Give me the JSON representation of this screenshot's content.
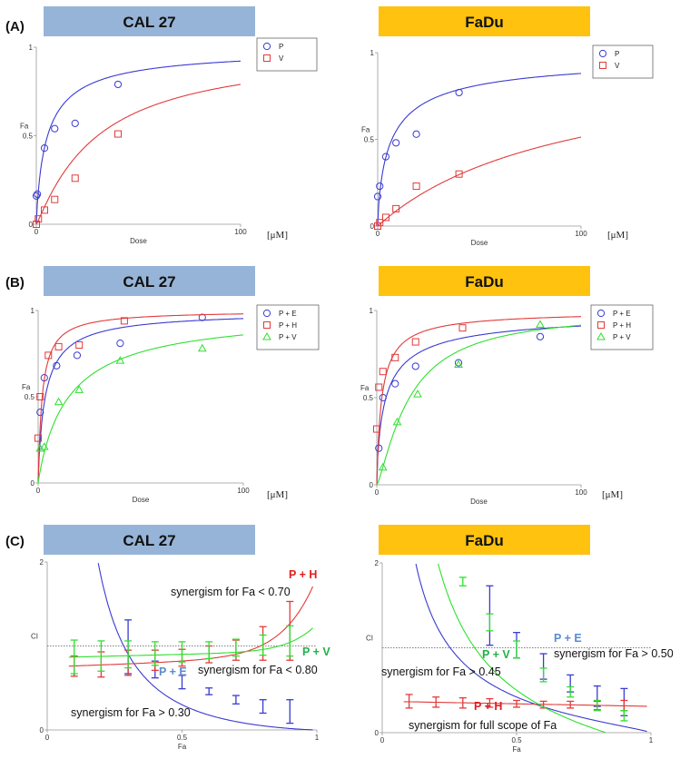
{
  "colors": {
    "cal27_banner": "#96b4d7",
    "fadu_banner": "#ffc20e",
    "blue": "#3a3ad2",
    "red": "#e23a3a",
    "green": "#2ee02e",
    "label_blue": "#5b8bd0",
    "label_red": "#e01e1e",
    "label_green": "#22b04a"
  },
  "banners": {
    "cal27": "CAL 27",
    "fadu": "FaDu"
  },
  "rows": {
    "a": "(A)",
    "b": "(B)",
    "c": "(C)"
  },
  "units": {
    "dose": "[μM]"
  },
  "chart_data": [
    {
      "id": "A-CAL27",
      "type": "scatter",
      "xlabel": "Dose",
      "ylabel": "Fa",
      "xlim": [
        0,
        100
      ],
      "ylim": [
        0,
        1
      ],
      "xticks": [
        0,
        100
      ],
      "yticks": [
        0,
        0.5,
        1
      ],
      "legend": "top-right",
      "series": [
        {
          "name": "P",
          "marker": "circle",
          "color": "blue",
          "x": [
            0,
            0.5,
            4,
            9,
            19,
            40
          ],
          "y": [
            0.16,
            0.17,
            0.43,
            0.54,
            0.57,
            0.79
          ],
          "curve": {
            "dm": 5.5,
            "m": 0.85
          }
        },
        {
          "name": "V",
          "marker": "square",
          "color": "red",
          "x": [
            0,
            1,
            4,
            9,
            19,
            40
          ],
          "y": [
            0,
            0.03,
            0.08,
            0.14,
            0.26,
            0.51
          ],
          "curve": {
            "dm": 30,
            "m": 1.1
          }
        }
      ]
    },
    {
      "id": "A-FaDu",
      "type": "scatter",
      "xlabel": "Dose",
      "ylabel": "Fa",
      "xlim": [
        0,
        100
      ],
      "ylim": [
        0,
        1
      ],
      "xticks": [
        0,
        100
      ],
      "yticks": [
        0,
        0.5,
        1
      ],
      "legend": "top-right",
      "series": [
        {
          "name": "P",
          "marker": "circle",
          "color": "blue",
          "x": [
            0,
            1,
            4,
            9,
            19,
            40
          ],
          "y": [
            0.17,
            0.23,
            0.4,
            0.48,
            0.53,
            0.77
          ],
          "curve": {
            "dm": 7,
            "m": 0.75
          }
        },
        {
          "name": "V",
          "marker": "square",
          "color": "red",
          "x": [
            0,
            1,
            4,
            9,
            19,
            40
          ],
          "y": [
            0,
            0.02,
            0.05,
            0.1,
            0.23,
            0.3
          ],
          "curve": {
            "dm": 95,
            "m": 1.0
          }
        }
      ]
    },
    {
      "id": "B-CAL27",
      "type": "scatter",
      "xlabel": "Dose",
      "ylabel": "Fa",
      "xlim": [
        0,
        100
      ],
      "ylim": [
        0,
        1
      ],
      "xticks": [
        0,
        100
      ],
      "yticks": [
        0,
        0.5,
        1
      ],
      "legend": "top-right",
      "series": [
        {
          "name": "P + E",
          "marker": "circle",
          "color": "blue",
          "x": [
            1,
            3,
            9,
            19,
            40,
            80
          ],
          "y": [
            0.41,
            0.61,
            0.68,
            0.74,
            0.81,
            0.96
          ],
          "curve": {
            "dm": 3.5,
            "m": 0.9
          }
        },
        {
          "name": "P + H",
          "marker": "square",
          "color": "red",
          "x": [
            0,
            1,
            5,
            10,
            20,
            42
          ],
          "y": [
            0.26,
            0.5,
            0.74,
            0.79,
            0.8,
            0.94
          ],
          "curve": {
            "dm": 2,
            "m": 1.0
          }
        },
        {
          "name": "P + V",
          "marker": "triangle",
          "color": "green",
          "x": [
            1,
            3,
            10,
            20,
            40,
            80
          ],
          "y": [
            0.2,
            0.21,
            0.47,
            0.54,
            0.71,
            0.78
          ],
          "curve": {
            "dm": 15,
            "m": 0.95
          }
        }
      ]
    },
    {
      "id": "B-FaDu",
      "type": "scatter",
      "xlabel": "Dose",
      "ylabel": "Fa",
      "xlim": [
        0,
        100
      ],
      "ylim": [
        0,
        1
      ],
      "xticks": [
        0,
        100
      ],
      "yticks": [
        0,
        0.5,
        1
      ],
      "legend": "top-right",
      "series": [
        {
          "name": "P + E",
          "marker": "circle",
          "color": "blue",
          "x": [
            1,
            3,
            9,
            19,
            40,
            80
          ],
          "y": [
            0.21,
            0.5,
            0.58,
            0.68,
            0.7,
            0.85
          ],
          "curve": {
            "dm": 4.5,
            "m": 0.75
          }
        },
        {
          "name": "P + H",
          "marker": "square",
          "color": "red",
          "x": [
            0,
            1,
            3,
            9,
            19,
            42
          ],
          "y": [
            0.32,
            0.56,
            0.65,
            0.73,
            0.82,
            0.9
          ],
          "curve": {
            "dm": 2.5,
            "m": 0.9
          }
        },
        {
          "name": "P + V",
          "marker": "triangle",
          "color": "green",
          "x": [
            3,
            10,
            20,
            40,
            80
          ],
          "y": [
            0.1,
            0.36,
            0.52,
            0.69,
            0.92
          ],
          "curve": {
            "dm": 16,
            "m": 1.3
          }
        }
      ]
    },
    {
      "id": "C-CAL27",
      "type": "line",
      "xlabel": "Fa",
      "ylabel": "CI",
      "xlim": [
        0,
        1
      ],
      "ylim": [
        0,
        2
      ],
      "xticks": [
        0,
        0.5,
        1
      ],
      "yticks": [
        0,
        2
      ],
      "reference_line": 1,
      "series": [
        {
          "name": "P + E",
          "color": "blue",
          "curve": {
            "a": 0.3,
            "k": 1.3
          },
          "x": [
            0.3,
            0.4,
            0.5,
            0.6,
            0.7,
            0.8,
            0.9
          ],
          "y": [
            0.99,
            0.72,
            0.57,
            0.46,
            0.36,
            0.28,
            0.22
          ],
          "err": [
            0.32,
            0.1,
            0.08,
            0.04,
            0.05,
            0.08,
            0.14
          ]
        },
        {
          "name": "P + H",
          "color": "red",
          "curve": {
            "a": 0.5,
            "k": 0.25,
            "t": 0.018,
            "s": 0.1
          },
          "x": [
            0.1,
            0.2,
            0.3,
            0.4,
            0.5,
            0.6,
            0.7,
            0.8,
            0.9
          ],
          "y": [
            0.76,
            0.78,
            0.8,
            0.83,
            0.86,
            0.9,
            0.95,
            1.03,
            1.18
          ],
          "err": [
            0.12,
            0.15,
            0.15,
            0.12,
            0.1,
            0.1,
            0.12,
            0.2,
            0.35
          ]
        },
        {
          "name": "P + V",
          "color": "green",
          "curve": {
            "a": 0.41,
            "k": 0.45,
            "t": 0.02,
            "s": 0.08
          },
          "x": [
            0.1,
            0.2,
            0.3,
            0.4,
            0.5,
            0.6,
            0.7,
            0.8,
            0.9
          ],
          "y": [
            0.87,
            0.88,
            0.9,
            0.91,
            0.93,
            0.95,
            0.98,
            1.01,
            1.06
          ],
          "err": [
            0.2,
            0.18,
            0.16,
            0.14,
            0.12,
            0.1,
            0.1,
            0.12,
            0.18
          ]
        }
      ],
      "annotations": [
        {
          "label": "P + H",
          "text": "synergism for Fa < 0.70",
          "series": "P + H"
        },
        {
          "label": "P + V",
          "text": "synergism for Fa < 0.80",
          "series": "P + V"
        },
        {
          "label": "P + E",
          "text": "synergism for Fa > 0.30",
          "series": "P + E"
        }
      ]
    },
    {
      "id": "C-FaDu",
      "type": "line",
      "xlabel": "Fa",
      "ylabel": "CI",
      "xlim": [
        0,
        1
      ],
      "ylim": [
        0,
        2
      ],
      "xticks": [
        0,
        0.5,
        1
      ],
      "yticks": [
        0,
        2
      ],
      "reference_line": 1,
      "series": [
        {
          "name": "P + E",
          "color": "blue",
          "curve": {
            "a": 0.42,
            "k": 0.8
          },
          "x": [
            0.4,
            0.5,
            0.6,
            0.7,
            0.8,
            0.9
          ],
          "y": [
            1.38,
            1.03,
            0.78,
            0.58,
            0.43,
            0.36
          ],
          "err": [
            0.35,
            0.15,
            0.15,
            0.1,
            0.12,
            0.16
          ]
        },
        {
          "name": "P + H",
          "color": "red",
          "curve": {
            "a": 0.36,
            "k": 0.0,
            "t": -0.03
          },
          "x": [
            0.1,
            0.2,
            0.3,
            0.4,
            0.5,
            0.6,
            0.7,
            0.8,
            0.9
          ],
          "y": [
            0.37,
            0.36,
            0.35,
            0.35,
            0.34,
            0.33,
            0.33,
            0.32,
            0.32
          ],
          "err": [
            0.08,
            0.06,
            0.06,
            0.05,
            0.04,
            0.04,
            0.04,
            0.05,
            0.06
          ]
        },
        {
          "name": "P + V",
          "color": "green",
          "curve": {
            "a": 0.5,
            "k": 1.0,
            "t": -0.3
          },
          "x": [
            0.3,
            0.4,
            0.5,
            0.6,
            0.7,
            0.8,
            0.9
          ],
          "y": [
            1.78,
            1.3,
            0.98,
            0.68,
            0.48,
            0.32,
            0.2
          ],
          "err": [
            0.05,
            0.1,
            0.1,
            0.08,
            0.06,
            0.06,
            0.06
          ]
        }
      ],
      "annotations": [
        {
          "label": "P + E",
          "text": "synergism for Fa > 0.50",
          "series": "P + E"
        },
        {
          "label": "P + V",
          "text": "synergism for Fa > 0.45",
          "series": "P + V"
        },
        {
          "label": "P + H",
          "text": "synergism for full scope of Fa",
          "series": "P + H"
        }
      ]
    }
  ]
}
